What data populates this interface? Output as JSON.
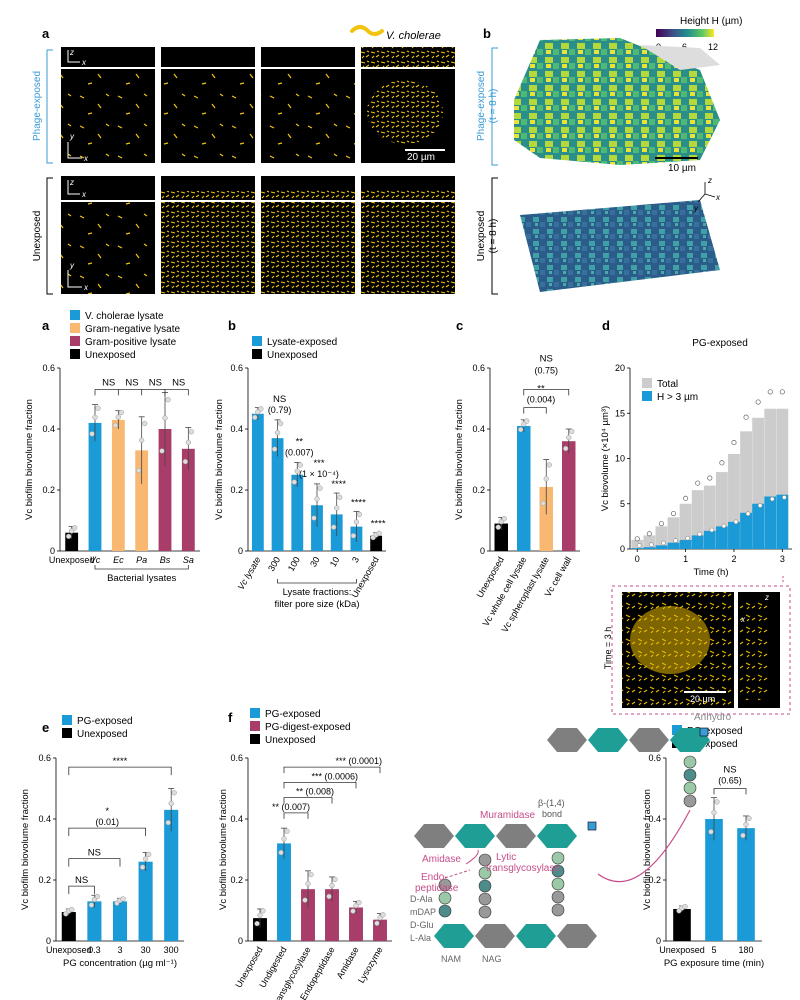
{
  "top": {
    "a": {
      "letter": "a",
      "legend_label": "V. cholerae",
      "row_phage": "Phage-exposed",
      "row_unexposed": "Unexposed",
      "axis_z": "z",
      "axis_x": "x",
      "axis_y": "y",
      "scale": "20 µm"
    },
    "b": {
      "letter": "b",
      "colorbar_title": "Height H (µm)",
      "colorbar_ticks": [
        "0",
        "6",
        "12"
      ],
      "row_phage": "Phage-exposed",
      "row_phage_time": "(t = 8 h)",
      "row_unexposed": "Unexposed",
      "row_unexposed_time": "(t = 8 h)",
      "scale": "10 µm",
      "axis_z": "z",
      "axis_x": "x",
      "axis_y": "y"
    }
  },
  "ylabel": "Vc biofilm biovolume fraction",
  "panel_d_colors": {
    "lysate": "#1a9ad6",
    "gramneg": "#f9b872",
    "grampos": "#a83d6a",
    "unexposed": "#000000",
    "total": "#cccccc"
  },
  "chart_data": [
    {
      "id": "a",
      "type": "bar",
      "letter": "a",
      "legend": [
        "V. cholerae lysate",
        "Gram-negative lysate",
        "Gram-positive lysate",
        "Unexposed"
      ],
      "categories": [
        "Unexposed",
        "Vc",
        "Ec",
        "Pa",
        "Bs",
        "Sa"
      ],
      "values": [
        0.06,
        0.42,
        0.43,
        0.33,
        0.4,
        0.335
      ],
      "errors": [
        0.02,
        0.06,
        0.03,
        0.11,
        0.12,
        0.07
      ],
      "ylabel": "Vc biofilm biovolume fraction",
      "yticks": [
        "0",
        "0.2",
        "0.4",
        "0.6"
      ],
      "ylim": [
        0,
        0.6
      ],
      "group_label": "Bacterial lysates",
      "significance": [
        "NS",
        "NS",
        "NS",
        "NS"
      ]
    },
    {
      "id": "b",
      "type": "bar",
      "letter": "b",
      "legend": [
        "Lysate-exposed",
        "Unexposed"
      ],
      "categories": [
        "Vc lysate",
        "300",
        "100",
        "30",
        "10",
        "3",
        "Unexposed"
      ],
      "values": [
        0.45,
        0.37,
        0.25,
        0.15,
        0.12,
        0.08,
        0.05
      ],
      "errors": [
        0.02,
        0.06,
        0.04,
        0.07,
        0.07,
        0.05,
        0.01
      ],
      "ylabel": "Vc biofilm biovolume fraction",
      "yticks": [
        "0",
        "0.2",
        "0.4",
        "0.6"
      ],
      "ylim": [
        0,
        0.6
      ],
      "group_label": "Lysate fractions:",
      "group_label2": "filter pore size (kDa)",
      "annotations": [
        {
          "text": "NS",
          "sub": "(0.79)"
        },
        {
          "text": "**",
          "sub": "(0.007)"
        },
        {
          "text": "***",
          "sub": "(1 × 10⁻⁴)"
        },
        {
          "text": "****",
          "sub": ""
        },
        {
          "text": "****",
          "sub": ""
        },
        {
          "text": "****",
          "sub": ""
        }
      ]
    },
    {
      "id": "c",
      "type": "bar",
      "letter": "c",
      "categories": [
        "Unexposed",
        "Vc whole cell lysate",
        "Vc spheroplast lysate",
        "Vc cell wall"
      ],
      "values": [
        0.09,
        0.41,
        0.21,
        0.36
      ],
      "errors": [
        0.02,
        0.02,
        0.09,
        0.04
      ],
      "ylabel": "Vc biofilm biovolume fraction",
      "yticks": [
        "0",
        "0.2",
        "0.4",
        "0.6"
      ],
      "ylim": [
        0,
        0.6
      ],
      "annotations": [
        {
          "text": "NS",
          "sub": "(0.75)"
        },
        {
          "text": "**",
          "sub": "(0.004)"
        }
      ]
    },
    {
      "id": "d",
      "type": "bar",
      "letter": "d",
      "title": "PG-exposed",
      "legend": [
        "Total",
        "H > 3 µm"
      ],
      "x": [
        0,
        0.25,
        0.5,
        0.75,
        1.0,
        1.25,
        1.5,
        1.75,
        2.0,
        2.25,
        2.5,
        2.75,
        3.0
      ],
      "total": [
        1.0,
        1.5,
        2.5,
        3.5,
        5.0,
        6.5,
        7.0,
        8.5,
        10.5,
        13.0,
        14.5,
        15.5,
        15.5
      ],
      "high": [
        0.1,
        0.2,
        0.4,
        0.7,
        1.0,
        1.5,
        2.0,
        2.5,
        3.0,
        4.0,
        5.0,
        5.8,
        6.0
      ],
      "ylabel": "Vc biovolume (×10⁴ µm³)",
      "xlabel": "Time (h)",
      "yticks": [
        "0",
        "5",
        "10",
        "15",
        "20"
      ],
      "xticks": [
        "0",
        "1",
        "2",
        "3"
      ],
      "ylim": [
        0,
        20
      ],
      "xlim": [
        -0.15,
        3.2
      ],
      "inset_label": "Time = 3 h",
      "inset_scale": "20 µm",
      "inset_axis_z": "z",
      "inset_axis_x": "x"
    },
    {
      "id": "e",
      "type": "bar",
      "letter": "e",
      "legend": [
        "PG-exposed",
        "Unexposed"
      ],
      "categories": [
        "Unexposed",
        "0.3",
        "3",
        "30",
        "300"
      ],
      "values": [
        0.095,
        0.13,
        0.13,
        0.26,
        0.43
      ],
      "errors": [
        0.01,
        0.02,
        0.01,
        0.03,
        0.07
      ],
      "ylabel": "Vc biofilm biovolume fraction",
      "xlabel": "PG concentration (µg ml⁻¹)",
      "yticks": [
        "0",
        "0.2",
        "0.4",
        "0.6"
      ],
      "ylim": [
        0,
        0.6
      ],
      "annotations": [
        {
          "text": "****",
          "sub": ""
        },
        {
          "text": "*",
          "sub": "(0.01)"
        },
        {
          "text": "NS",
          "sub": ""
        },
        {
          "text": "NS",
          "sub": ""
        }
      ]
    },
    {
      "id": "f",
      "type": "bar",
      "letter": "f",
      "legend": [
        "PG-exposed",
        "PG-digest-exposed",
        "Unexposed"
      ],
      "categories": [
        "Unexposed",
        "Undigested",
        "Transglycosylase",
        "Endopeptidase",
        "Amidase",
        "Lysozyme"
      ],
      "values": [
        0.075,
        0.32,
        0.17,
        0.17,
        0.11,
        0.07
      ],
      "errors": [
        0.03,
        0.05,
        0.06,
        0.04,
        0.02,
        0.02
      ],
      "ylabel": "Vc biofilm biovolume fraction",
      "yticks": [
        "0",
        "0.2",
        "0.4",
        "0.6"
      ],
      "ylim": [
        0,
        0.6
      ],
      "annotations": [
        {
          "text": "*** (0.0001)"
        },
        {
          "text": "*** (0.0006)"
        },
        {
          "text": "** (0.008)"
        },
        {
          "text": "** (0.007)"
        }
      ]
    },
    {
      "id": "g",
      "type": "bar",
      "letter": "g",
      "legend": [
        "PG-exposed",
        "Unexposed"
      ],
      "categories": [
        "Unexposed",
        "5",
        "180"
      ],
      "values": [
        0.105,
        0.4,
        0.37
      ],
      "errors": [
        0.01,
        0.07,
        0.04
      ],
      "ylabel": "Vc biofilm biovolume fraction",
      "xlabel": "PG exposure time (min)",
      "yticks": [
        "0",
        "0.2",
        "0.4",
        "0.6"
      ],
      "ylim": [
        0,
        0.6
      ],
      "annotations": [
        {
          "text": "NS",
          "sub": "(0.65)"
        }
      ]
    }
  ],
  "pg_diagram": {
    "anhydro": "Anhydro",
    "muramidase": "Muramidase",
    "beta_bond": "β-(1,4)",
    "bond": "bond",
    "amidase": "Amidase",
    "endopeptidase_1": "Endo-",
    "endopeptidase_2": "peptidase",
    "lytic_1": "Lytic",
    "lytic_2": "transglycosylase",
    "residues": [
      "D-Ala",
      "mDAP",
      "D-Glu",
      "L-Ala"
    ],
    "nam": "NAM",
    "nag": "NAG"
  }
}
